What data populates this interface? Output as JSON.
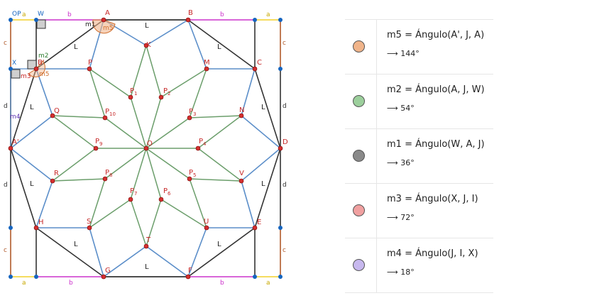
{
  "diagram": {
    "points": {
      "A": "A",
      "B": "B",
      "C": "C",
      "D": "D",
      "E": "E",
      "F": "F",
      "G": "G",
      "H": "H",
      "A1": "A'",
      "J": "B'",
      "K": "K",
      "M": "M",
      "N": "N",
      "V": "V",
      "U": "U",
      "T": "T",
      "S": "S",
      "R": "R",
      "Q": "Q",
      "P": "P",
      "O": "O",
      "OP": "OP",
      "W": "W",
      "X": "X",
      "Pletter": "P"
    },
    "subscripts": [
      "1",
      "2",
      "3",
      "4",
      "5",
      "6",
      "7",
      "8",
      "9",
      "10"
    ],
    "segments": {
      "a": "a",
      "b": "b",
      "c": "c",
      "d": "d",
      "L": "L"
    },
    "angle_labels": {
      "m1": "m1",
      "m2": "m2",
      "m3": "m3",
      "m4": "m4",
      "m5": "m5"
    },
    "colors": {
      "blue": "#5b8ec9",
      "green": "#6b9e6b",
      "dark": "#333333",
      "magenta": "#cc33cc",
      "yellow": "#f2d12a",
      "brown": "#b05a2a",
      "point": "#d32f2f",
      "corner": "#1565c0"
    }
  },
  "algebra": {
    "rows": [
      {
        "name": "m5",
        "definition": "m5 = Ángulo(A', J, A)",
        "value": "⟶ 144°",
        "color": "#f0b48a"
      },
      {
        "name": "m2",
        "definition": "m2 = Ángulo(A, J, W)",
        "value": "⟶ 54°",
        "color": "#9ccf9c"
      },
      {
        "name": "m1",
        "definition": "m1 = Ángulo(W, A, J)",
        "value": "⟶ 36°",
        "color": "#8a8a8a"
      },
      {
        "name": "m3",
        "definition": "m3 = Ángulo(X, J, I)",
        "value": "⟶ 72°",
        "color": "#f0a0a0"
      },
      {
        "name": "m4",
        "definition": "m4 = Ángulo(J, I, X)",
        "value": "⟶ 18°",
        "color": "#c7b8ee"
      }
    ]
  }
}
